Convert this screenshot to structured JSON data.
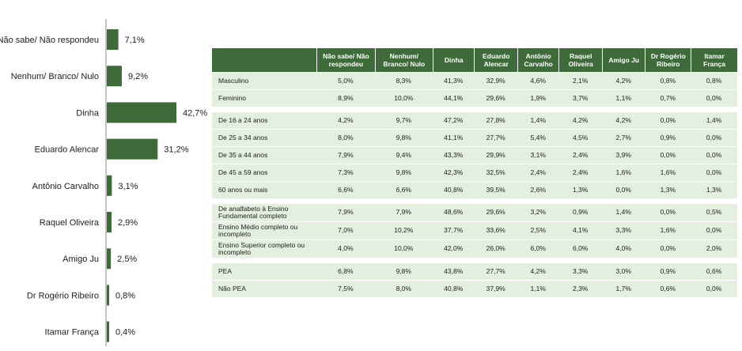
{
  "chart_data": [
    {
      "type": "bar",
      "orientation": "horizontal",
      "categories": [
        "Não sabe/ Não respondeu",
        "Nenhum/ Branco/ Nulo",
        "Dinha",
        "Eduardo Alencar",
        "Antônio Carvalho",
        "Raquel Oliveira",
        "Amigo Ju",
        "Dr Rogério Ribeiro",
        "Itamar França"
      ],
      "values": [
        7.1,
        9.2,
        42.7,
        31.2,
        3.1,
        2.9,
        2.5,
        0.8,
        0.4
      ],
      "value_labels": [
        "7,1%",
        "9,2%",
        "42,7%",
        "31,2%",
        "3,1%",
        "2,9%",
        "2,5%",
        "0,8%",
        "0,4%"
      ],
      "bar_color": "#3f6b3a",
      "xlim": [
        0,
        42.7
      ]
    },
    {
      "type": "table",
      "columns": [
        "",
        "Não sabe/ Não respondeu",
        "Nenhum/ Branco/ Nulo",
        "Dinha",
        "Eduardo Alencar",
        "Antônio Carvalho",
        "Raquel Oliveira",
        "Amigo Ju",
        "Dr Rogério Ribeiro",
        "Itamar França"
      ],
      "groups": [
        [
          {
            "label": "Masculino",
            "values": [
              "5,0%",
              "8,3%",
              "41,3%",
              "32,9%",
              "4,6%",
              "2,1%",
              "4,2%",
              "0,8%",
              "0,8%"
            ]
          },
          {
            "label": "Feminino",
            "values": [
              "8,9%",
              "10,0%",
              "44,1%",
              "29,6%",
              "1,9%",
              "3,7%",
              "1,1%",
              "0,7%",
              "0,0%"
            ]
          }
        ],
        [
          {
            "label": "De 16 a 24 anos",
            "values": [
              "4,2%",
              "9,7%",
              "47,2%",
              "27,8%",
              "1,4%",
              "4,2%",
              "4,2%",
              "0,0%",
              "1,4%"
            ]
          },
          {
            "label": "De 25 a 34 anos",
            "values": [
              "8,0%",
              "9,8%",
              "41,1%",
              "27,7%",
              "5,4%",
              "4,5%",
              "2,7%",
              "0,9%",
              "0,0%"
            ]
          },
          {
            "label": "De 35 a 44 anos",
            "values": [
              "7,9%",
              "9,4%",
              "43,3%",
              "29,9%",
              "3,1%",
              "2,4%",
              "3,9%",
              "0,0%",
              "0,0%"
            ]
          },
          {
            "label": "De 45 a 59 anos",
            "values": [
              "7,3%",
              "9,8%",
              "42,3%",
              "32,5%",
              "2,4%",
              "2,4%",
              "1,6%",
              "1,6%",
              "0,0%"
            ]
          },
          {
            "label": "60 anos ou mais",
            "values": [
              "6,6%",
              "6,6%",
              "40,8%",
              "39,5%",
              "2,6%",
              "1,3%",
              "0,0%",
              "1,3%",
              "1,3%"
            ]
          }
        ],
        [
          {
            "label": "De analfabeto à Ensino Fundamental completo",
            "values": [
              "7,9%",
              "7,9%",
              "48,6%",
              "29,6%",
              "3,2%",
              "0,9%",
              "1,4%",
              "0,0%",
              "0,5%"
            ]
          },
          {
            "label": "Ensino Médio completo ou incompleto",
            "values": [
              "7,0%",
              "10,2%",
              "37,7%",
              "33,6%",
              "2,5%",
              "4,1%",
              "3,3%",
              "1,6%",
              "0,0%"
            ]
          },
          {
            "label": "Ensino Superior completo ou incompleto",
            "values": [
              "4,0%",
              "10,0%",
              "42,0%",
              "26,0%",
              "6,0%",
              "6,0%",
              "4,0%",
              "0,0%",
              "2,0%"
            ]
          }
        ],
        [
          {
            "label": "PEA",
            "values": [
              "6,8%",
              "9,8%",
              "43,8%",
              "27,7%",
              "4,2%",
              "3,3%",
              "3,0%",
              "0,9%",
              "0,6%"
            ]
          },
          {
            "label": "Não PEA",
            "values": [
              "7,5%",
              "8,0%",
              "40,8%",
              "37,9%",
              "1,1%",
              "2,3%",
              "1,7%",
              "0,6%",
              "0,0%"
            ]
          }
        ]
      ],
      "header_color": "#3f6b3a",
      "row_color": "#e3efdf"
    }
  ]
}
